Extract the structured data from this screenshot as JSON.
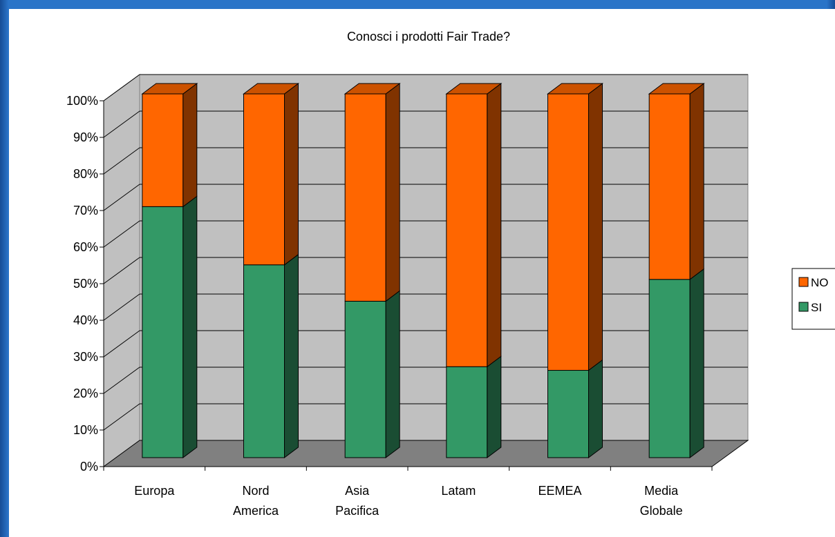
{
  "chart_data": {
    "type": "bar",
    "stacked": true,
    "style": "3d-column-100-percent",
    "title": "Conosci i prodotti Fair Trade?",
    "categories": [
      [
        "Europa"
      ],
      [
        "Nord",
        "America"
      ],
      [
        "Asia",
        "Pacifica"
      ],
      [
        "Latam"
      ],
      [
        "EEMEA"
      ],
      [
        "Media",
        "Globale"
      ]
    ],
    "series": [
      {
        "name": "SI",
        "color": "#339966",
        "values": [
          69,
          53,
          43,
          25,
          24,
          49
        ]
      },
      {
        "name": "NO",
        "color": "#ff6600",
        "values": [
          31,
          47,
          57,
          75,
          76,
          51
        ]
      }
    ],
    "y_ticks": [
      "0%",
      "10%",
      "20%",
      "30%",
      "40%",
      "50%",
      "60%",
      "70%",
      "80%",
      "90%",
      "100%"
    ],
    "ylim": [
      0,
      100
    ],
    "grid": true,
    "legend_position": "right",
    "legend_order": [
      "NO",
      "SI"
    ],
    "colors": {
      "wall": "#c0c0c0",
      "floor": "#808080",
      "frame": "#2a74c8"
    }
  }
}
